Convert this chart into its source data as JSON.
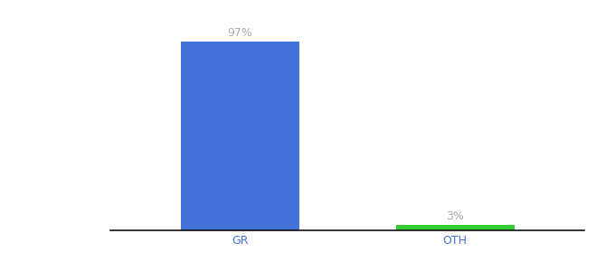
{
  "categories": [
    "GR",
    "OTH"
  ],
  "values": [
    97,
    3
  ],
  "bar_colors": [
    "#4472db",
    "#33cc33"
  ],
  "label_texts": [
    "97%",
    "3%"
  ],
  "background_color": "#ffffff",
  "ylim": [
    0,
    107
  ],
  "bar_width": 0.55,
  "label_color": "#aaaaaa",
  "label_fontsize": 9,
  "tick_fontsize": 9,
  "tick_color": "#4472db",
  "axis_line_color": "#111111"
}
